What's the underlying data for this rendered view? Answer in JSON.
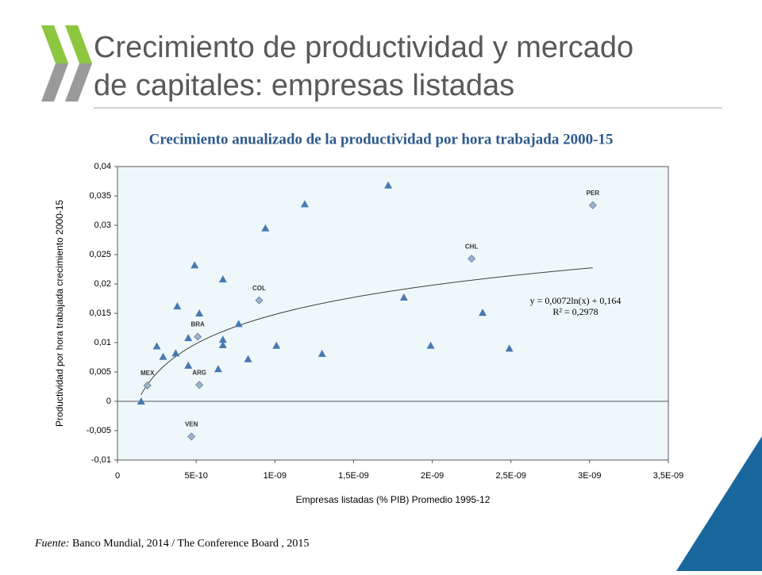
{
  "header": {
    "title_line1": "Crecimiento de productividad y mercado",
    "title_line2": "de capitales: empresas listadas"
  },
  "footer": {
    "source_prefix": "Fuente:",
    "source": "Banco Mundial, 2014  / The  Conference Board , 2015"
  },
  "chart_data": {
    "type": "scatter",
    "title": "Crecimiento anualizado de la productividad por hora trabajada 2000-15",
    "xlabel": "Empresas listadas (% PIB) Promedio 1995-12",
    "ylabel": "Productividad por hora trabajada crecimiento 2000-15",
    "xlim": [
      0,
      3.5e-09
    ],
    "ylim": [
      -0.01,
      0.04
    ],
    "xticks": [
      0,
      {
        "value": 5e-10,
        "label": "5E-10"
      },
      {
        "value": 1e-09,
        "label": "1E-09"
      },
      {
        "value": 1.5e-09,
        "label": "1,5E-09"
      },
      {
        "value": 2e-09,
        "label": "2E-09"
      },
      {
        "value": 2.5e-09,
        "label": "2,5E-09"
      },
      {
        "value": 3e-09,
        "label": "3E-09"
      },
      {
        "value": 3.5e-09,
        "label": "3,5E-09"
      }
    ],
    "yticks": [
      {
        "value": -0.01,
        "label": "-0,01"
      },
      {
        "value": -0.005,
        "label": "-0,005"
      },
      0,
      {
        "value": 0.005,
        "label": "0,005"
      },
      {
        "value": 0.01,
        "label": "0,01"
      },
      {
        "value": 0.015,
        "label": "0,015"
      },
      {
        "value": 0.02,
        "label": "0,02"
      },
      {
        "value": 0.025,
        "label": "0,025"
      },
      {
        "value": 0.03,
        "label": "0,03"
      },
      {
        "value": 0.035,
        "label": "0,035"
      },
      {
        "value": 0.04,
        "label": "0,04"
      }
    ],
    "plot_background": "#eef8fa",
    "series": [
      {
        "marker": "triangle",
        "color": "#4a78b0",
        "x": [
          1.5e-10,
          2.5e-10,
          2.9e-10,
          3.7e-10,
          3.8e-10,
          4.5e-10,
          4.5e-10,
          4.9e-10,
          5.2e-10,
          6.4e-10,
          6.7e-10,
          6.7e-10,
          6.7e-10,
          7.7e-10,
          8.3e-10,
          9.4e-10,
          1.01e-09,
          1.19e-09,
          1.3e-09,
          1.72e-09,
          1.82e-09,
          1.99e-09,
          2.32e-09,
          2.49e-09
        ],
        "values": [
          0,
          0.0094,
          0.0076,
          0.0082,
          0.0162,
          0.0108,
          0.0061,
          0.0232,
          0.015,
          0.0055,
          0.0096,
          0.0105,
          0.0208,
          0.0132,
          0.0072,
          0.0295,
          0.0095,
          0.0336,
          0.0081,
          0.0368,
          0.0177,
          0.0095,
          0.0151,
          0.009
        ]
      },
      {
        "marker": "diamond",
        "color": "#9cb2cf",
        "x": [
          1.9e-10,
          4.7e-10,
          5.2e-10,
          5.1e-10,
          9e-10,
          2.25e-09,
          3.02e-09
        ],
        "values": [
          0.0027,
          -0.006,
          0.0028,
          0.011,
          0.0172,
          0.0243,
          0.0334
        ],
        "point_labels": [
          "MEX",
          "VEN",
          "ARG",
          "BRA",
          "COL",
          "CHL",
          "PER"
        ]
      }
    ],
    "trendline": {
      "equation": "y = 0,0072ln(x) + 0,164",
      "r_squared": "R² = 0,2978",
      "slope": 0.0072,
      "intercept": 0.164
    }
  }
}
